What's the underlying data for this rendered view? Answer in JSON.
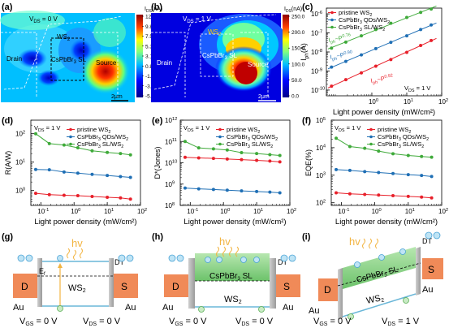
{
  "panel_labels": {
    "a": "(a)",
    "b": "(b)",
    "c": "(c)",
    "d": "(d)",
    "e": "(e)",
    "f": "(f)",
    "g": "(g)",
    "h": "(h)",
    "i": "(i)"
  },
  "map_a": {
    "vds": "V",
    "vds_sub": "DS",
    "vds_val": " = 0 V",
    "ws2": "WS",
    "ws2_sub": "2",
    "cspbbr": "CsPbBr",
    "cspbbr_sub": "3",
    "cspbbr_tail": " SL",
    "drain": "Drain",
    "source": "Source",
    "scale": "2μm",
    "cb_title": "I",
    "cb_title_sub": "DS",
    "cb_title_tail": "(nA)",
    "cb_ticks": [
      "12.0",
      "9.8",
      "7.5",
      "5.3",
      "3.1",
      "0.8",
      "-1.5",
      "-3.7",
      "-5.4"
    ],
    "map_colors": [
      "#0000c8",
      "#0000ff",
      "#0060ff",
      "#00c0ff",
      "#00ffff",
      "#60ff90",
      "#c0ff40",
      "#ffff00",
      "#ffa000",
      "#ff4000",
      "#e00000",
      "#a00000"
    ]
  },
  "map_b": {
    "vds": "V",
    "vds_sub": "DS",
    "vds_val": " = 1 V",
    "ws2": "WS",
    "ws2_sub": "2",
    "cspbbr": "CsPbBr",
    "cspbbr_sub": "3",
    "cspbbr_tail": " SL",
    "drain": "Drain",
    "source": "Source",
    "scale": "2μm",
    "cb_title": "I",
    "cb_title_sub": "DS",
    "cb_title_tail": "(nA)",
    "cb_ticks": [
      "250.0",
      "200.0",
      "150.0",
      "100.0",
      "50.0",
      "0.0"
    ]
  },
  "chart_data": [
    {
      "id": "c",
      "type": "scatter",
      "xlabel": "Light power density (mW/cm²)",
      "ylabel": "I",
      "ylabel_sub": "ph",
      "ylabel_tail": "(A)",
      "xscale": "log",
      "yscale": "log",
      "xlim": [
        0.05,
        100
      ],
      "ylim": [
        5e-11,
        2e-06
      ],
      "xticks": [
        {
          "v": 1,
          "label": "10",
          "sup": "0"
        },
        {
          "v": 10,
          "label": "10",
          "sup": "1"
        },
        {
          "v": 100,
          "label": "10",
          "sup": "2"
        }
      ],
      "yticks": [
        {
          "v": 1e-10,
          "label": "10",
          "sup": "-10"
        },
        {
          "v": 1e-09,
          "label": "10",
          "sup": "-9"
        },
        {
          "v": 1e-08,
          "label": "10",
          "sup": "-8"
        },
        {
          "v": 1e-07,
          "label": "10",
          "sup": "-7"
        },
        {
          "v": 1e-06,
          "label": "10",
          "sup": "-6"
        }
      ],
      "x": [
        0.07,
        0.18,
        0.5,
        1.3,
        3.5,
        10,
        25,
        50
      ],
      "series": [
        {
          "name": "pristine WS",
          "name_sub": "2",
          "color": "#e8202a",
          "values": [
            1.6e-10,
            3.5e-10,
            8e-10,
            1.8e-09,
            4e-09,
            9.5e-09,
            2.2e-08,
            4e-08
          ]
        },
        {
          "name": "CsPbBr",
          "name_sub": "3",
          "name_tail": " QDs/WS",
          "name_sub2": "2",
          "color": "#1f6fb5",
          "values": [
            1.6e-09,
            3.2e-09,
            7e-09,
            1.5e-08,
            3.2e-08,
            7e-08,
            1.5e-07,
            2.6e-07
          ]
        },
        {
          "name": "CsPbBr",
          "name_sub": "3",
          "name_tail": " SL/WS",
          "name_sub2": "2",
          "color": "#3faa3a",
          "values": [
            1.6e-08,
            3.3e-08,
            7e-08,
            1.5e-07,
            3.2e-07,
            6.5e-07,
            1.2e-06,
            1.8e-06
          ]
        }
      ],
      "annotations": [
        {
          "text": "I",
          "sub": "ph",
          "tail": "~P",
          "sup": "0.76",
          "color": "#3faa3a"
        },
        {
          "text": "I",
          "sub": "ph",
          "tail": "~P",
          "sup": "0.90",
          "color": "#1f6fb5"
        },
        {
          "text": "I",
          "sub": "ph",
          "tail": "~P",
          "sup": "0.92",
          "color": "#e8202a"
        }
      ],
      "note": "V",
      "note_sub": "DS",
      "note_tail": " = 1 V"
    },
    {
      "id": "d",
      "type": "line",
      "xlabel": "Light power density (mW/cm²)",
      "ylabel": "R(A/W)",
      "xscale": "log",
      "yscale": "log",
      "xlim": [
        0.05,
        100
      ],
      "ylim": [
        0.3,
        300
      ],
      "xticks": [
        {
          "v": 0.1,
          "label": "10",
          "sup": "-1"
        },
        {
          "v": 1,
          "label": "10",
          "sup": "0"
        },
        {
          "v": 10,
          "label": "10",
          "sup": "1"
        },
        {
          "v": 100,
          "label": "10",
          "sup": "2"
        }
      ],
      "yticks": [
        {
          "v": 1,
          "label": "10",
          "sup": "0"
        },
        {
          "v": 10,
          "label": "10",
          "sup": "1"
        },
        {
          "v": 100,
          "label": "10",
          "sup": "2"
        }
      ],
      "x": [
        0.07,
        0.18,
        0.5,
        1.3,
        3.5,
        10,
        25,
        50
      ],
      "series": [
        {
          "name": "pristine WS",
          "name_sub": "2",
          "color": "#e8202a",
          "values": [
            0.8,
            0.72,
            0.68,
            0.66,
            0.62,
            0.58,
            0.55,
            0.5
          ]
        },
        {
          "name": "CsPbBr",
          "name_sub": "3",
          "name_tail": " QDs/WS",
          "name_sub2": "2",
          "color": "#1f6fb5",
          "values": [
            5.5,
            5.4,
            4.5,
            4.1,
            3.7,
            3.4,
            3.1,
            2.9
          ]
        },
        {
          "name": "CsPbBr",
          "name_sub": "3",
          "name_tail": " SL/WS",
          "name_sub2": "2",
          "color": "#3faa3a",
          "values": [
            100,
            45,
            40,
            32,
            25,
            22,
            20,
            18
          ]
        }
      ],
      "note": "V",
      "note_sub": "DS",
      "note_tail": " = 1 V"
    },
    {
      "id": "e",
      "type": "line",
      "xlabel": "Light power density (mW/cm²)",
      "ylabel": "D*(Jones)",
      "xscale": "log",
      "yscale": "log",
      "xlim": [
        0.05,
        100
      ],
      "ylim": [
        100000000.0,
        1000000000000.0
      ],
      "xticks": [
        {
          "v": 0.1,
          "label": "10",
          "sup": "-1"
        },
        {
          "v": 1,
          "label": "10",
          "sup": "0"
        },
        {
          "v": 10,
          "label": "10",
          "sup": "1"
        },
        {
          "v": 100,
          "label": "10",
          "sup": "2"
        }
      ],
      "yticks": [
        {
          "v": 100000000.0,
          "label": "10",
          "sup": "8"
        },
        {
          "v": 1000000000.0,
          "label": "10",
          "sup": "9"
        },
        {
          "v": 10000000000.0,
          "label": "10",
          "sup": "10"
        },
        {
          "v": 100000000000.0,
          "label": "10",
          "sup": "11"
        },
        {
          "v": 1000000000000.0,
          "label": "10",
          "sup": "12"
        }
      ],
      "x": [
        0.07,
        0.18,
        0.5,
        1.3,
        3.5,
        10,
        25,
        50
      ],
      "series": [
        {
          "name": "pristine WS",
          "name_sub": "2",
          "color": "#e8202a",
          "values": [
            18000000000.0,
            17000000000.0,
            16000000000.0,
            15000000000.0,
            14000000000.0,
            13000000000.0,
            12000000000.0,
            11000000000.0
          ]
        },
        {
          "name": "CsPbBr",
          "name_sub": "3",
          "name_tail": " QDs/WS",
          "name_sub2": "2",
          "color": "#1f6fb5",
          "values": [
            650000000.0,
            600000000.0,
            560000000.0,
            520000000.0,
            480000000.0,
            450000000.0,
            420000000.0,
            390000000.0
          ]
        },
        {
          "name": "CsPbBr",
          "name_sub": "3",
          "name_tail": " SL/WS",
          "name_sub2": "2",
          "color": "#3faa3a",
          "values": [
            100000000000.0,
            50000000000.0,
            45000000000.0,
            40000000000.0,
            30000000000.0,
            27000000000.0,
            24000000000.0,
            22000000000.0
          ]
        }
      ],
      "note": "V",
      "note_sub": "DS",
      "note_tail": " = 1 V"
    },
    {
      "id": "f",
      "type": "line",
      "xlabel": "Light power density (mW/cm²)",
      "ylabel": "EQE(%)",
      "xscale": "log",
      "yscale": "log",
      "xlim": [
        0.05,
        100
      ],
      "ylim": [
        80,
        100000.0
      ],
      "xticks": [
        {
          "v": 0.1,
          "label": "10",
          "sup": "-1"
        },
        {
          "v": 1,
          "label": "10",
          "sup": "0"
        },
        {
          "v": 10,
          "label": "10",
          "sup": "1"
        },
        {
          "v": 100,
          "label": "10",
          "sup": "2"
        }
      ],
      "yticks": [
        {
          "v": 100,
          "label": "10",
          "sup": "2"
        },
        {
          "v": 1000,
          "label": "10",
          "sup": "3"
        },
        {
          "v": 10000,
          "label": "10",
          "sup": "4"
        },
        {
          "v": 100000,
          "label": "10",
          "sup": "5"
        }
      ],
      "x": [
        0.07,
        0.18,
        0.5,
        1.3,
        3.5,
        10,
        25,
        50
      ],
      "series": [
        {
          "name": "pristine WS",
          "name_sub": "2",
          "color": "#e8202a",
          "values": [
            230,
            210,
            200,
            190,
            180,
            170,
            160,
            150
          ]
        },
        {
          "name": "CsPbBr",
          "name_sub": "3",
          "name_tail": " QDs/WS",
          "name_sub2": "2",
          "color": "#1f6fb5",
          "values": [
            1600,
            1500,
            1350,
            1250,
            1150,
            1050,
            980,
            900
          ]
        },
        {
          "name": "CsPbBr",
          "name_sub": "3",
          "name_tail": " SL/WS",
          "name_sub2": "2",
          "color": "#3faa3a",
          "values": [
            22000,
            11000,
            9500,
            7500,
            6000,
            5200,
            4800,
            4500
          ]
        }
      ],
      "note": "V",
      "note_sub": "DS",
      "note_tail": " = 1 V"
    }
  ],
  "band_g": {
    "hv": "hv",
    "dt": "DT",
    "ef": "E",
    "ef_sub": "f",
    "ws2": "WS",
    "ws2_sub": "2",
    "d": "D",
    "s": "S",
    "au": "Au",
    "vgs": "V",
    "vgs_sub": "GS",
    "vgs_val": " = 0 V",
    "vds": "V",
    "vds_sub": "DS",
    "vds_val": " = 0 V"
  },
  "band_h": {
    "hv": "hv",
    "dt": "DT",
    "layer": "CsPbBr",
    "layer_sub": "3",
    "layer_tail": " SL",
    "ws2": "WS",
    "ws2_sub": "2",
    "d": "D",
    "s": "S",
    "au": "Au",
    "vgs": "V",
    "vgs_sub": "GS",
    "vgs_val": " = 0 V",
    "vds": "V",
    "vds_sub": "DS",
    "vds_val": " = 0 V"
  },
  "band_i": {
    "hv": "hv",
    "dt": "DT",
    "layer": "CsPbBr",
    "layer_sub": "3",
    "layer_tail": " SL",
    "ws2": "WS",
    "ws2_sub": "2",
    "d": "D",
    "s": "S",
    "au": "Au",
    "vgs": "V",
    "vgs_sub": "GS",
    "vgs_val": " = 0 V",
    "vds": "V",
    "vds_sub": "DS",
    "vds_val": " = 1 V"
  }
}
